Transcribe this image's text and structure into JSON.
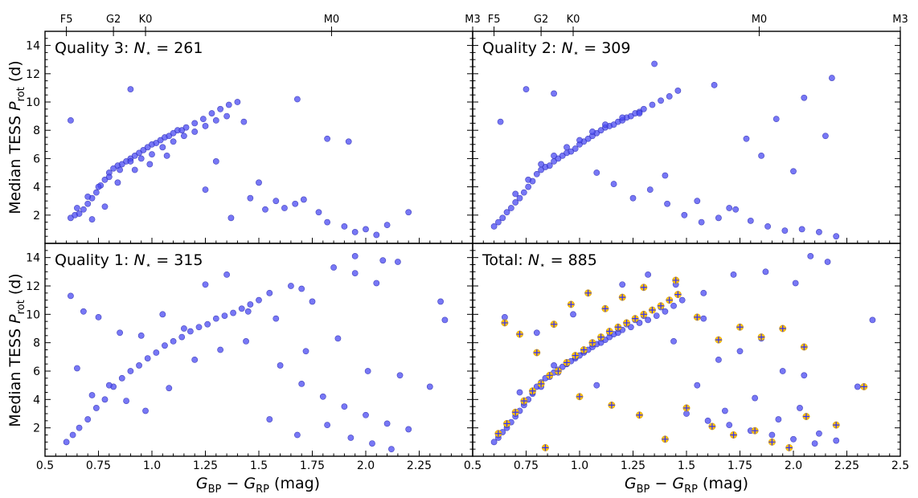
{
  "figure": {
    "ylabel_main": "Median TESS ",
    "ylabel_sym": "P",
    "ylabel_sub": "rot",
    "ylabel_unit": " (d)",
    "xlabel_g1": "G",
    "xlabel_s1": "BP",
    "xlabel_minus": " − ",
    "xlabel_g2": "G",
    "xlabel_s2": "RP",
    "xlabel_unit": " (mag)",
    "count_sym": "N",
    "count_sub": "⋆",
    "count_eq": " = "
  },
  "colors": {
    "points": "#4a4af2",
    "point_edge": "#2a2ab0",
    "highlight": "#ffc000",
    "cross": "#3030ff"
  },
  "chart_data": [
    {
      "type": "scatter",
      "panel": "top-left",
      "title_prefix": "Quality 3: ",
      "n_value": "261",
      "xlim": [
        0.5,
        2.5
      ],
      "ylim": [
        0,
        15
      ],
      "xticks": [],
      "yticks": [
        "2",
        "4",
        "6",
        "8",
        "10",
        "12",
        "14"
      ],
      "top_ticks": [
        {
          "x": 0.6,
          "label": "F5"
        },
        {
          "x": 0.82,
          "label": "G2"
        },
        {
          "x": 0.97,
          "label": "K0"
        },
        {
          "x": 1.84,
          "label": "M0"
        },
        {
          "x": 2.5,
          "label": "M3"
        }
      ],
      "x": [
        0.62,
        0.64,
        0.66,
        0.68,
        0.7,
        0.72,
        0.74,
        0.76,
        0.78,
        0.8,
        0.82,
        0.84,
        0.86,
        0.88,
        0.9,
        0.92,
        0.94,
        0.96,
        0.98,
        1.0,
        1.02,
        1.04,
        1.06,
        1.08,
        1.1,
        1.12,
        1.14,
        1.16,
        1.2,
        1.24,
        1.28,
        1.32,
        1.36,
        1.4,
        0.65,
        0.7,
        0.75,
        0.8,
        0.85,
        0.9,
        0.95,
        1.0,
        1.05,
        1.1,
        1.15,
        1.2,
        1.25,
        1.3,
        1.35,
        0.72,
        0.78,
        0.84,
        0.92,
        0.99,
        1.07,
        1.3,
        1.43,
        1.46,
        1.53,
        1.58,
        1.67,
        1.78,
        1.82,
        1.9,
        1.95,
        2.0,
        2.05,
        2.1,
        2.2,
        1.25,
        1.37,
        1.5,
        1.62,
        1.71,
        0.62,
        0.9,
        1.68,
        1.82,
        1.92
      ],
      "y": [
        1.8,
        2.0,
        2.1,
        2.4,
        2.8,
        3.2,
        3.6,
        4.1,
        4.5,
        5.0,
        5.3,
        5.5,
        5.6,
        5.8,
        6.0,
        6.2,
        6.4,
        6.6,
        6.8,
        7.0,
        7.1,
        7.3,
        7.5,
        7.6,
        7.8,
        8.0,
        8.0,
        8.2,
        8.5,
        8.8,
        9.2,
        9.5,
        9.8,
        10.0,
        2.5,
        3.3,
        4.0,
        4.7,
        5.2,
        5.8,
        6.0,
        6.3,
        6.8,
        7.2,
        7.6,
        7.9,
        8.3,
        8.7,
        9.0,
        1.7,
        2.6,
        4.3,
        5.2,
        5.6,
        6.2,
        5.8,
        8.6,
        3.2,
        2.4,
        3.0,
        2.8,
        2.2,
        1.5,
        1.2,
        0.8,
        1.0,
        0.6,
        1.3,
        2.2,
        3.8,
        1.8,
        4.3,
        2.5,
        3.1,
        8.7,
        10.9,
        10.2,
        7.4,
        7.2
      ]
    },
    {
      "type": "scatter",
      "panel": "top-right",
      "title_prefix": "Quality 2: ",
      "n_value": "309",
      "xlim": [
        0.5,
        2.5
      ],
      "ylim": [
        0,
        15
      ],
      "xticks": [],
      "yticks": [],
      "top_ticks": [
        {
          "x": 0.6,
          "label": "F5"
        },
        {
          "x": 0.82,
          "label": "G2"
        },
        {
          "x": 0.97,
          "label": "K0"
        },
        {
          "x": 1.84,
          "label": "M0"
        },
        {
          "x": 2.5,
          "label": "M3"
        }
      ],
      "x": [
        0.6,
        0.62,
        0.64,
        0.66,
        0.68,
        0.7,
        0.72,
        0.74,
        0.76,
        0.78,
        0.8,
        0.82,
        0.84,
        0.86,
        0.88,
        0.9,
        0.92,
        0.94,
        0.96,
        0.98,
        1.0,
        1.02,
        1.04,
        1.06,
        1.08,
        1.1,
        1.12,
        1.14,
        1.16,
        1.18,
        1.2,
        1.22,
        1.24,
        1.26,
        1.28,
        1.3,
        1.34,
        1.38,
        1.42,
        1.46,
        0.7,
        0.76,
        0.82,
        0.88,
        0.94,
        1.0,
        1.06,
        1.12,
        1.2,
        1.28,
        1.08,
        1.16,
        1.25,
        1.33,
        1.41,
        1.49,
        1.57,
        1.65,
        1.73,
        1.8,
        1.88,
        1.96,
        2.04,
        2.12,
        2.2,
        1.4,
        1.55,
        1.7,
        1.85,
        2.0,
        2.15,
        0.63,
        0.75,
        0.88,
        1.35,
        1.63,
        1.78,
        1.92,
        2.05,
        2.18
      ],
      "y": [
        1.2,
        1.5,
        1.8,
        2.2,
        2.5,
        2.9,
        3.2,
        3.6,
        4.0,
        4.4,
        4.9,
        5.2,
        5.4,
        5.5,
        5.8,
        6.0,
        6.2,
        6.4,
        6.5,
        6.7,
        7.0,
        7.2,
        7.4,
        7.6,
        7.8,
        8.0,
        8.2,
        8.3,
        8.4,
        8.6,
        8.7,
        8.9,
        9.0,
        9.2,
        9.3,
        9.5,
        9.8,
        10.1,
        10.4,
        10.8,
        3.5,
        4.5,
        5.6,
        6.2,
        6.8,
        7.3,
        7.9,
        8.4,
        8.9,
        9.2,
        5.0,
        4.2,
        3.2,
        3.8,
        2.8,
        2.0,
        1.5,
        1.8,
        2.4,
        1.6,
        1.2,
        0.9,
        1.0,
        0.8,
        0.5,
        4.8,
        3.0,
        2.5,
        6.2,
        5.1,
        7.6,
        8.6,
        10.9,
        10.6,
        12.7,
        11.2,
        7.4,
        8.8,
        10.3,
        11.7
      ]
    },
    {
      "type": "scatter",
      "panel": "bottom-left",
      "title_prefix": "Quality 1: ",
      "n_value": "315",
      "xlim": [
        0.5,
        2.5
      ],
      "ylim": [
        0,
        15
      ],
      "xticks": [
        "0.5",
        "0.75",
        "1.0",
        "1.25",
        "1.5",
        "1.75",
        "2.0",
        "2.25",
        "2.5"
      ],
      "yticks": [
        "2",
        "4",
        "6",
        "8",
        "10",
        "12",
        "14"
      ],
      "top_ticks": [],
      "x": [
        0.6,
        0.63,
        0.66,
        0.7,
        0.74,
        0.78,
        0.82,
        0.86,
        0.9,
        0.94,
        0.98,
        1.02,
        1.06,
        1.1,
        1.14,
        1.18,
        1.22,
        1.26,
        1.3,
        1.34,
        1.38,
        1.42,
        1.46,
        1.5,
        0.62,
        0.68,
        0.75,
        0.85,
        0.95,
        1.05,
        1.15,
        1.25,
        1.35,
        1.45,
        1.55,
        1.65,
        1.75,
        1.85,
        1.95,
        2.05,
        2.15,
        1.6,
        1.7,
        1.8,
        1.9,
        2.0,
        2.1,
        2.2,
        2.3,
        1.55,
        1.68,
        1.82,
        1.93,
        2.03,
        2.12,
        0.65,
        0.72,
        0.8,
        0.88,
        0.97,
        1.08,
        1.2,
        1.32,
        1.44,
        1.58,
        1.72,
        1.87,
        2.01,
        2.16,
        2.35,
        2.37,
        1.7,
        1.95,
        2.08
      ],
      "y": [
        1.0,
        1.5,
        2.0,
        2.6,
        3.4,
        4.0,
        4.9,
        5.5,
        6.0,
        6.4,
        6.9,
        7.3,
        7.8,
        8.1,
        8.4,
        8.8,
        9.1,
        9.3,
        9.7,
        9.9,
        10.1,
        10.4,
        10.7,
        11.0,
        11.3,
        10.2,
        9.8,
        8.7,
        8.5,
        10.0,
        9.0,
        12.1,
        12.8,
        10.2,
        11.5,
        12.0,
        10.9,
        13.3,
        12.9,
        12.2,
        13.7,
        6.4,
        5.1,
        4.2,
        3.5,
        2.9,
        2.3,
        1.9,
        4.9,
        2.6,
        1.5,
        2.2,
        1.3,
        0.9,
        0.5,
        6.2,
        4.3,
        5.0,
        3.9,
        3.2,
        4.8,
        6.8,
        7.5,
        8.1,
        9.7,
        7.4,
        8.3,
        6.0,
        5.7,
        10.9,
        9.6,
        11.8,
        14.1,
        13.8
      ]
    },
    {
      "type": "scatter",
      "panel": "bottom-right",
      "title_prefix": "Total: ",
      "n_value": "885",
      "xlim": [
        0.5,
        2.5
      ],
      "ylim": [
        0,
        15
      ],
      "xticks": [
        "0.5",
        "0.75",
        "1.0",
        "1.25",
        "1.5",
        "1.75",
        "2.0",
        "2.25",
        "2.5"
      ],
      "yticks": [],
      "top_ticks": [],
      "x": [
        0.6,
        0.62,
        0.64,
        0.66,
        0.68,
        0.7,
        0.72,
        0.74,
        0.76,
        0.78,
        0.8,
        0.82,
        0.84,
        0.86,
        0.88,
        0.9,
        0.92,
        0.94,
        0.96,
        0.98,
        1.0,
        1.02,
        1.04,
        1.06,
        1.08,
        1.1,
        1.12,
        1.14,
        1.16,
        1.18,
        1.2,
        1.24,
        1.28,
        1.32,
        1.36,
        1.4,
        1.44,
        1.48,
        0.62,
        0.66,
        0.7,
        0.74,
        0.78,
        0.82,
        0.86,
        0.9,
        0.94,
        0.98,
        1.02,
        1.06,
        1.1,
        1.14,
        1.18,
        1.22,
        1.26,
        1.3,
        1.34,
        1.38,
        1.5,
        1.6,
        1.7,
        1.8,
        1.9,
        2.0,
        2.1,
        2.2,
        2.3,
        1.55,
        1.68,
        1.82,
        1.93,
        2.03,
        2.12,
        1.45,
        1.58,
        1.72,
        1.87,
        2.01,
        2.16,
        0.65,
        0.8,
        0.97,
        1.2,
        1.32,
        1.58,
        1.75,
        1.95,
        2.08,
        2.37,
        0.72,
        0.88,
        1.08,
        1.44,
        1.65,
        1.85,
        2.05
      ],
      "y": [
        1.0,
        1.3,
        1.7,
        2.0,
        2.4,
        2.8,
        3.2,
        3.6,
        4.0,
        4.4,
        4.9,
        5.2,
        5.5,
        5.7,
        5.9,
        6.1,
        6.3,
        6.5,
        6.7,
        6.9,
        7.1,
        7.3,
        7.5,
        7.7,
        7.9,
        8.0,
        8.2,
        8.4,
        8.6,
        8.7,
        8.9,
        9.1,
        9.4,
        9.6,
        9.9,
        10.2,
        10.6,
        11.0,
        1.5,
        2.2,
        3.0,
        3.8,
        4.5,
        4.9,
        5.6,
        5.9,
        6.5,
        7.0,
        7.4,
        7.9,
        8.3,
        8.7,
        9.0,
        9.3,
        9.6,
        9.9,
        10.3,
        10.5,
        3.0,
        2.5,
        2.2,
        1.8,
        1.5,
        1.2,
        0.9,
        1.1,
        4.9,
        5.0,
        3.2,
        4.1,
        2.6,
        3.4,
        1.6,
        12.1,
        11.5,
        12.8,
        13.0,
        12.2,
        13.7,
        9.8,
        8.7,
        10.0,
        12.1,
        12.8,
        9.7,
        7.4,
        6.0,
        14.1,
        9.6,
        4.5,
        6.4,
        5.0,
        8.1,
        6.8,
        8.3,
        5.7
      ],
      "highlight_x": [
        0.62,
        0.66,
        0.7,
        0.74,
        0.78,
        0.82,
        0.86,
        0.9,
        0.94,
        0.98,
        1.02,
        1.06,
        1.1,
        1.14,
        1.18,
        1.22,
        1.26,
        1.3,
        1.34,
        1.38,
        1.42,
        1.46,
        0.65,
        0.72,
        0.8,
        0.88,
        0.96,
        1.04,
        1.12,
        1.2,
        1.3,
        1.45,
        1.55,
        1.65,
        1.75,
        1.85,
        1.95,
        2.05,
        1.5,
        1.62,
        1.72,
        1.82,
        1.9,
        1.98,
        2.06,
        2.2,
        2.33,
        1.0,
        1.15,
        1.28,
        0.84,
        1.4
      ],
      "highlight_y": [
        1.6,
        2.3,
        3.1,
        3.9,
        4.6,
        5.1,
        5.7,
        6.0,
        6.6,
        7.1,
        7.5,
        8.0,
        8.4,
        8.8,
        9.1,
        9.4,
        9.7,
        10.0,
        10.3,
        10.6,
        11.0,
        11.4,
        9.4,
        8.6,
        7.3,
        9.3,
        10.7,
        11.5,
        10.4,
        11.2,
        11.9,
        12.4,
        9.8,
        8.2,
        9.1,
        8.4,
        9.0,
        7.7,
        3.4,
        2.1,
        1.5,
        1.8,
        1.0,
        0.6,
        2.8,
        2.2,
        4.9,
        4.2,
        3.6,
        2.9,
        0.6,
        1.2
      ]
    }
  ]
}
